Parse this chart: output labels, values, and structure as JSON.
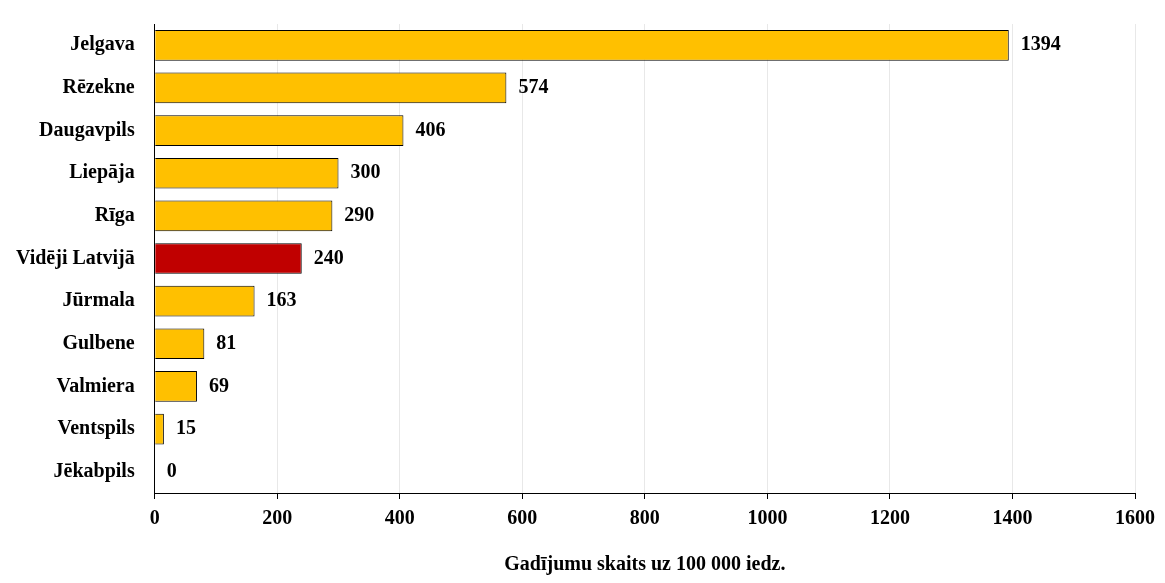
{
  "chart_data": {
    "type": "bar",
    "orientation": "horizontal",
    "categories": [
      "Jelgava",
      "Rēzekne",
      "Daugavpils",
      "Liepāja",
      "Rīga",
      "Vidēji Latvijā",
      "Jūrmala",
      "Gulbene",
      "Valmiera",
      "Ventspils",
      "Jēkabpils"
    ],
    "values": [
      1394,
      574,
      406,
      300,
      290,
      240,
      163,
      81,
      69,
      15,
      0
    ],
    "colors": [
      "#ffc000",
      "#ffc000",
      "#ffc000",
      "#ffc000",
      "#ffc000",
      "#c00000",
      "#ffc000",
      "#ffc000",
      "#ffc000",
      "#ffc000",
      "#ffc000"
    ],
    "xlim": [
      0,
      1600
    ],
    "xticks": [
      0,
      200,
      400,
      600,
      800,
      1000,
      1200,
      1400,
      1600
    ],
    "xlabel": "Gadījumu skaits uz 100 000 iedz.",
    "grid": "x",
    "data_labels": true,
    "legend": false
  }
}
